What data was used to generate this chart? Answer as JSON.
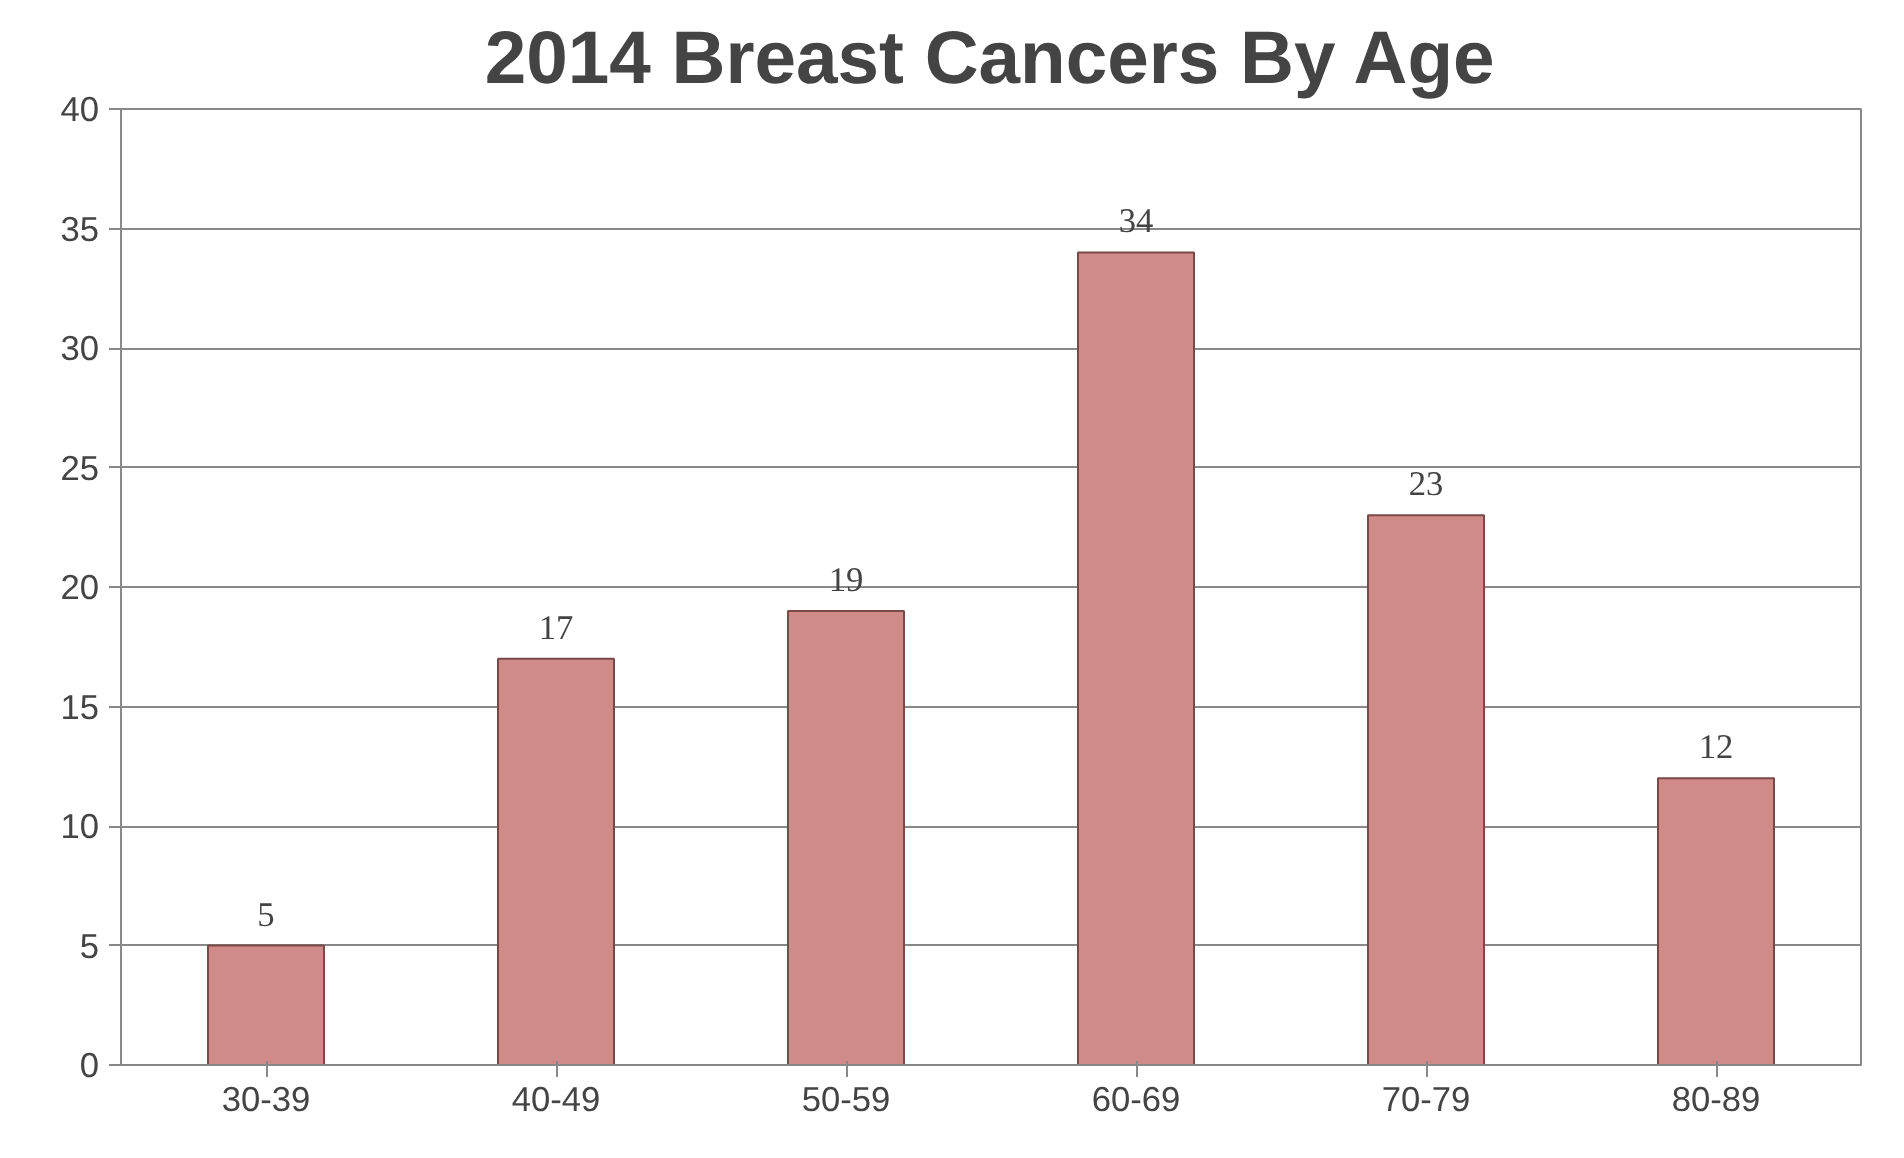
{
  "chart_data": {
    "type": "bar",
    "title": "2014 Breast Cancers By Age",
    "categories": [
      "30-39",
      "40-49",
      "50-59",
      "60-69",
      "70-79",
      "80-89"
    ],
    "values": [
      5,
      17,
      19,
      34,
      23,
      12
    ],
    "color": "#d08a88",
    "ylim": [
      0,
      40
    ],
    "yticks": [
      0,
      5,
      10,
      15,
      20,
      25,
      30,
      35,
      40
    ],
    "grid": "y",
    "data_labels": true
  }
}
